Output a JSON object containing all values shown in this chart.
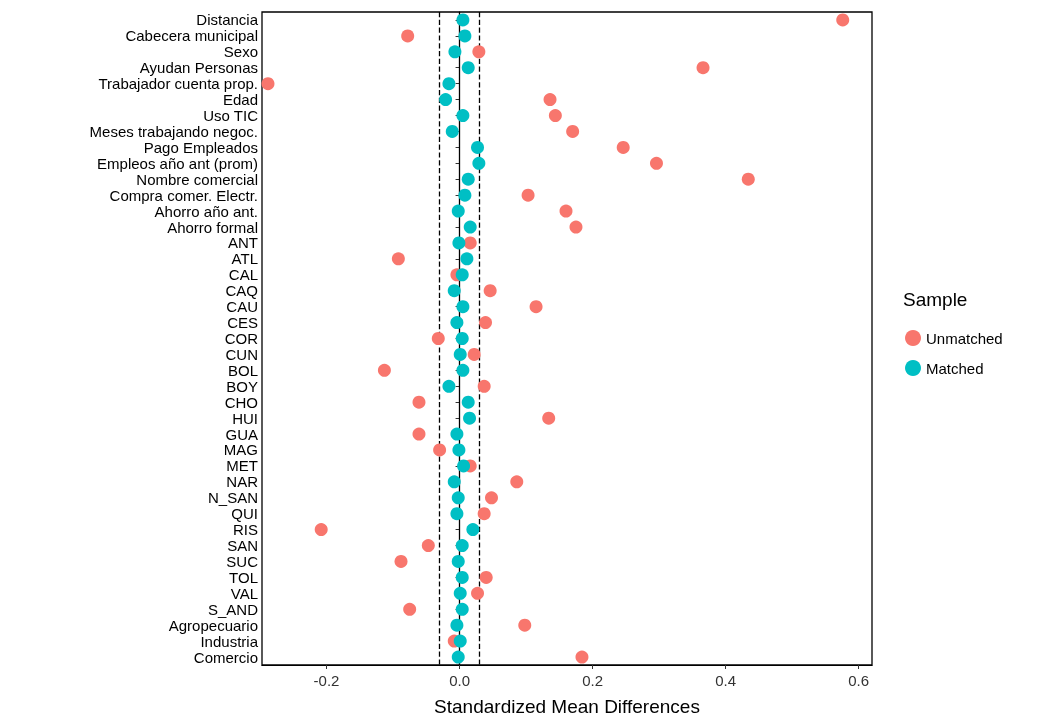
{
  "chart_data": {
    "type": "scatter",
    "orientation": "horizontal",
    "xlabel": "Standardized Mean Differences",
    "legend_title": "Sample",
    "legend": "right",
    "grid": false,
    "marker": "circle",
    "categories": [
      "Distancia",
      "Cabecera municipal",
      "Sexo",
      "Ayudan Personas",
      "Trabajador cuenta prop.",
      "Edad",
      "Uso TIC",
      "Meses trabajando negoc.",
      "Pago Empleados",
      "Empleos año ant (prom)",
      "Nombre comercial",
      "Compra comer. Electr.",
      "Ahorro año ant.",
      "Ahorro formal",
      "ANT",
      "ATL",
      "CAL",
      "CAQ",
      "CAU",
      "CES",
      "COR",
      "CUN",
      "BOL",
      "BOY",
      "CHO",
      "HUI",
      "GUA",
      "MAG",
      "MET",
      "NAR",
      "N_SAN",
      "QUI",
      "RIS",
      "SAN",
      "SUC",
      "TOL",
      "VAL",
      "S_AND",
      "Agropecuario",
      "Industria",
      "Comercio"
    ],
    "xlim": [
      -0.297,
      0.62
    ],
    "xticks": [
      -0.2,
      {
        "value": 0,
        "label": "0.0"
      },
      0.2,
      0.4,
      0.6
    ],
    "series": [
      {
        "name": "Unmatched",
        "color": "#f8766d",
        "values": [
          0.576,
          -0.078,
          0.029,
          0.366,
          -0.288,
          0.136,
          0.144,
          0.17,
          0.246,
          0.296,
          0.434,
          0.103,
          0.16,
          0.175,
          0.016,
          -0.092,
          -0.004,
          0.046,
          0.115,
          0.039,
          -0.032,
          0.022,
          -0.113,
          0.037,
          -0.061,
          0.134,
          -0.061,
          -0.03,
          0.016,
          0.086,
          0.048,
          0.037,
          -0.208,
          -0.047,
          -0.088,
          0.04,
          0.027,
          -0.075,
          0.098,
          -0.008,
          0.184
        ]
      },
      {
        "name": "Matched",
        "color": "#00bfc4",
        "values": [
          0.005,
          0.008,
          -0.007,
          0.013,
          -0.016,
          -0.021,
          0.005,
          -0.011,
          0.027,
          0.029,
          0.013,
          0.008,
          -0.002,
          0.016,
          -0.001,
          0.011,
          0.004,
          -0.008,
          0.005,
          -0.004,
          0.004,
          0.001,
          0.005,
          -0.016,
          0.013,
          0.015,
          -0.004,
          -0.001,
          0.006,
          -0.008,
          -0.002,
          -0.004,
          0.02,
          0.004,
          -0.002,
          0.004,
          0.001,
          0.004,
          -0.004,
          0.001,
          -0.002
        ]
      }
    ],
    "ref_lines": [
      {
        "axis": "x",
        "value": 0,
        "line_style": "solid",
        "color": "#000000"
      },
      {
        "axis": "x",
        "value": -0.03,
        "line_style": "dashed",
        "color": "#000000"
      },
      {
        "axis": "x",
        "value": 0.03,
        "line_style": "dashed",
        "color": "#000000"
      }
    ]
  }
}
